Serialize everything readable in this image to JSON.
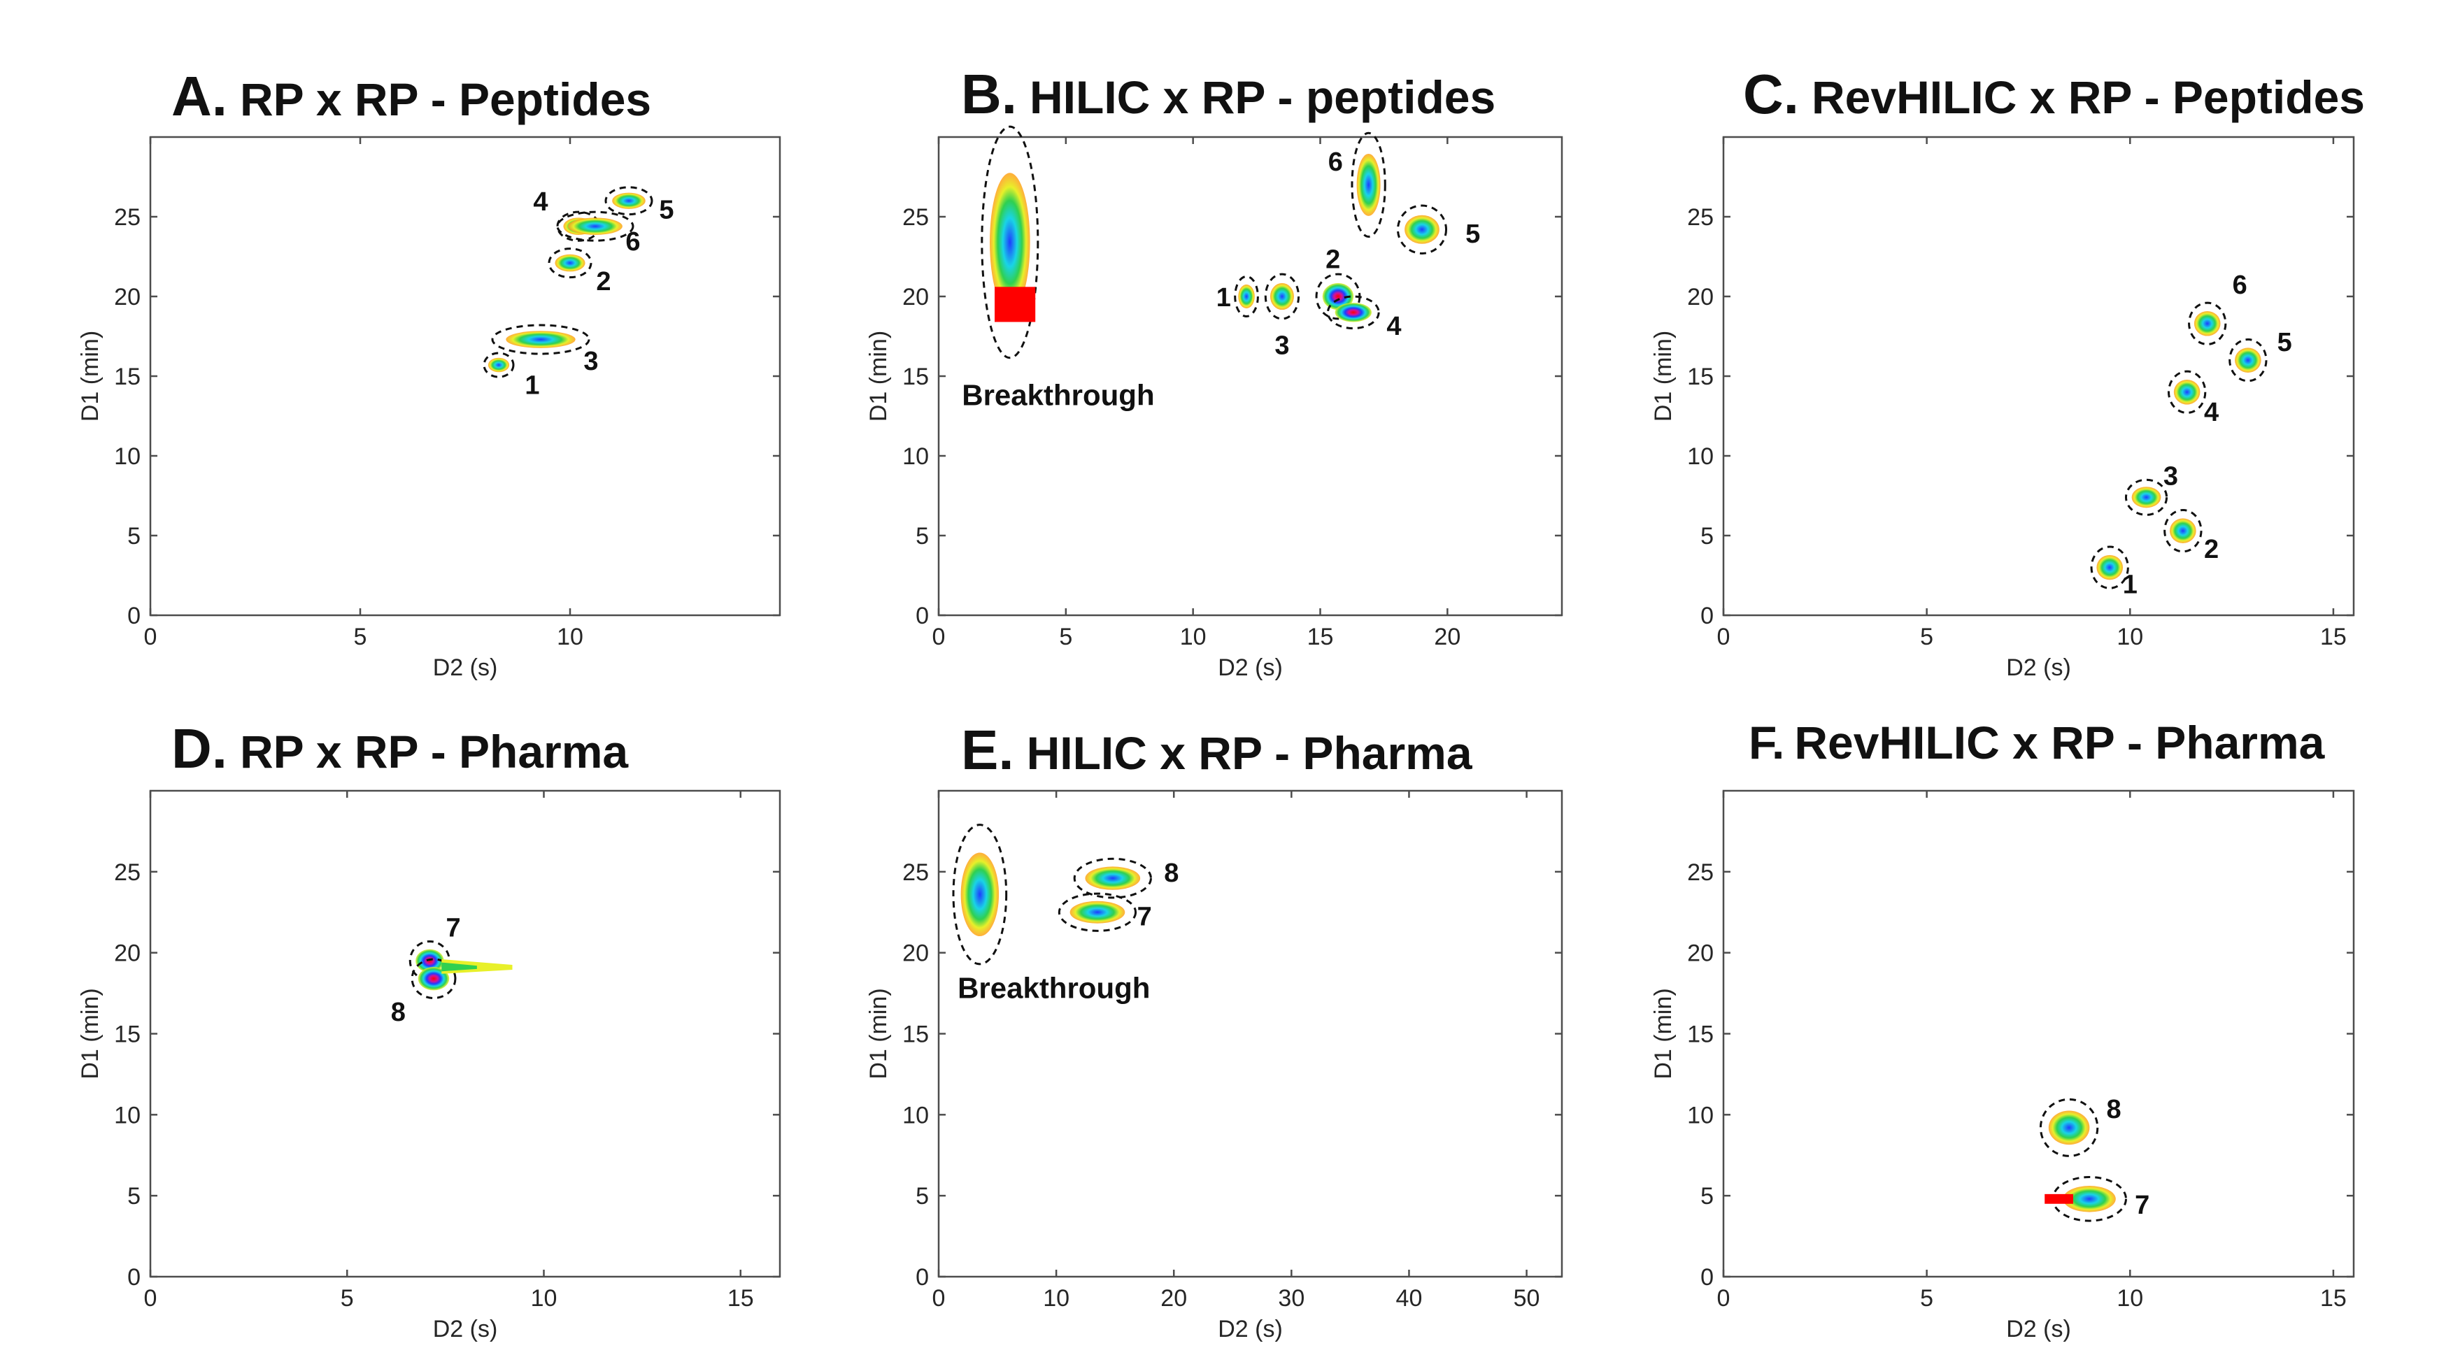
{
  "colors": {
    "red": "#ff0000",
    "magenta": "#d4119a",
    "blue": "#1f3cff",
    "cyan": "#19d4e6",
    "green": "#2fd050",
    "yellow": "#e8f02a",
    "orange": "#ffa01a"
  },
  "chart_data": [
    {
      "id": "A",
      "type": "scatter",
      "letter": "A.",
      "title": "RP x RP - Peptides",
      "xlabel": "D2 (s)",
      "ylabel": "D1 (min)",
      "xlim": [
        0,
        15
      ],
      "ylim": [
        0,
        30
      ],
      "xticks": [
        0,
        5,
        10
      ],
      "yticks": [
        0,
        5,
        10,
        15,
        20,
        25
      ],
      "peaks": [
        {
          "label": "1",
          "x": 8.3,
          "y": 15.7,
          "w": 0.7,
          "h": 1.5,
          "lx": 9.1,
          "ly": 14.5,
          "intensity": 2
        },
        {
          "label": "2",
          "x": 10.0,
          "y": 22.1,
          "w": 1.0,
          "h": 1.8,
          "lx": 10.8,
          "ly": 21.0,
          "intensity": 2
        },
        {
          "label": "3",
          "x": 9.3,
          "y": 17.3,
          "w": 2.3,
          "h": 1.8,
          "lx": 10.5,
          "ly": 16.0,
          "intensity": 2
        },
        {
          "label": "4",
          "x": 10.2,
          "y": 24.4,
          "w": 1.0,
          "h": 1.8,
          "lx": 9.3,
          "ly": 26.0,
          "intensity": 2
        },
        {
          "label": "5",
          "x": 11.4,
          "y": 26.0,
          "w": 1.1,
          "h": 1.7,
          "lx": 12.3,
          "ly": 25.5,
          "intensity": 2
        },
        {
          "label": "6",
          "x": 10.6,
          "y": 24.4,
          "w": 1.8,
          "h": 1.8,
          "lx": 11.5,
          "ly": 23.5,
          "intensity": 2
        }
      ],
      "annotations": []
    },
    {
      "id": "B",
      "type": "scatter",
      "letter": "B.",
      "title": "HILIC x RP - peptides",
      "xlabel": "D2 (s)",
      "ylabel": "D1 (min)",
      "xlim": [
        0,
        24.5
      ],
      "ylim": [
        0,
        30
      ],
      "xticks": [
        0,
        5,
        10,
        15,
        20
      ],
      "yticks": [
        0,
        5,
        10,
        15,
        20,
        25
      ],
      "peaks": [
        {
          "label": "",
          "x": 2.8,
          "y": 23.4,
          "w": 2.2,
          "h": 14.5,
          "lx": 0,
          "ly": 0,
          "intensity": 2
        },
        {
          "label": "1",
          "x": 12.1,
          "y": 20.0,
          "w": 0.9,
          "h": 2.5,
          "lx": 11.2,
          "ly": 20.0,
          "intensity": 2
        },
        {
          "label": "2",
          "x": 15.7,
          "y": 20.0,
          "w": 1.7,
          "h": 2.8,
          "lx": 15.5,
          "ly": 22.4,
          "intensity": 3
        },
        {
          "label": "3",
          "x": 13.5,
          "y": 20.0,
          "w": 1.3,
          "h": 2.8,
          "lx": 13.5,
          "ly": 17.0,
          "intensity": 2
        },
        {
          "label": "4",
          "x": 16.3,
          "y": 19.0,
          "w": 2.0,
          "h": 2.0,
          "lx": 17.9,
          "ly": 18.2,
          "intensity": 3
        },
        {
          "label": "5",
          "x": 19.0,
          "y": 24.2,
          "w": 1.9,
          "h": 3.0,
          "lx": 21.0,
          "ly": 24.0,
          "intensity": 2
        },
        {
          "label": "6",
          "x": 16.9,
          "y": 27.0,
          "w": 1.3,
          "h": 6.5,
          "lx": 15.6,
          "ly": 28.5,
          "intensity": 2
        }
      ],
      "annotations": [
        {
          "text": "Breakthrough",
          "x": 4.7,
          "y": 13.8
        }
      ]
    },
    {
      "id": "C",
      "type": "scatter",
      "letter": "C.",
      "title": "RevHILIC x RP - Peptides",
      "xlabel": "D2 (s)",
      "ylabel": "D1 (min)",
      "xlim": [
        0,
        15.5
      ],
      "ylim": [
        0,
        30
      ],
      "xticks": [
        0,
        5,
        10,
        15
      ],
      "yticks": [
        0,
        5,
        10,
        15,
        20,
        25
      ],
      "peaks": [
        {
          "label": "1",
          "x": 9.5,
          "y": 3.0,
          "w": 0.9,
          "h": 2.6,
          "lx": 10.0,
          "ly": 2.0,
          "intensity": 2
        },
        {
          "label": "2",
          "x": 11.3,
          "y": 5.3,
          "w": 0.9,
          "h": 2.6,
          "lx": 12.0,
          "ly": 4.2,
          "intensity": 2
        },
        {
          "label": "3",
          "x": 10.4,
          "y": 7.4,
          "w": 1.0,
          "h": 2.2,
          "lx": 11.0,
          "ly": 8.8,
          "intensity": 2
        },
        {
          "label": "4",
          "x": 11.4,
          "y": 14.0,
          "w": 0.9,
          "h": 2.6,
          "lx": 12.0,
          "ly": 12.8,
          "intensity": 2
        },
        {
          "label": "5",
          "x": 12.9,
          "y": 16.0,
          "w": 0.9,
          "h": 2.6,
          "lx": 13.8,
          "ly": 17.2,
          "intensity": 2
        },
        {
          "label": "6",
          "x": 11.9,
          "y": 18.3,
          "w": 0.9,
          "h": 2.6,
          "lx": 12.7,
          "ly": 20.8,
          "intensity": 2
        }
      ],
      "annotations": []
    },
    {
      "id": "D",
      "type": "scatter",
      "letter": "D.",
      "title": "RP x RP - Pharma",
      "xlabel": "D2 (s)",
      "ylabel": "D1 (min)",
      "xlim": [
        0,
        16
      ],
      "ylim": [
        0,
        30
      ],
      "xticks": [
        0,
        5,
        10,
        15
      ],
      "yticks": [
        0,
        5,
        10,
        15,
        20,
        25
      ],
      "peaks": [
        {
          "label": "7",
          "x": 7.1,
          "y": 19.5,
          "w": 1.0,
          "h": 2.4,
          "lx": 7.7,
          "ly": 21.6,
          "intensity": 3
        },
        {
          "label": "8",
          "x": 7.2,
          "y": 18.4,
          "w": 1.1,
          "h": 2.4,
          "lx": 6.3,
          "ly": 16.4,
          "intensity": 3
        }
      ],
      "annotations": []
    },
    {
      "id": "E",
      "type": "scatter",
      "letter": "E.",
      "title": "HILIC x RP - Pharma",
      "xlabel": "D2 (s)",
      "ylabel": "D1 (min)",
      "xlim": [
        0,
        53
      ],
      "ylim": [
        0,
        30
      ],
      "xticks": [
        0,
        10,
        20,
        30,
        40,
        50
      ],
      "yticks": [
        0,
        5,
        10,
        15,
        20,
        25
      ],
      "peaks": [
        {
          "label": "",
          "x": 3.5,
          "y": 23.6,
          "w": 4.5,
          "h": 8.6,
          "lx": 0,
          "ly": 0,
          "intensity": 2
        },
        {
          "label": "7",
          "x": 13.5,
          "y": 22.5,
          "w": 6.5,
          "h": 2.3,
          "lx": 17.5,
          "ly": 22.3,
          "intensity": 2
        },
        {
          "label": "8",
          "x": 14.8,
          "y": 24.6,
          "w": 6.5,
          "h": 2.4,
          "lx": 19.8,
          "ly": 25.0,
          "intensity": 2
        }
      ],
      "annotations": [
        {
          "text": "Breakthrough",
          "x": 9.8,
          "y": 17.8
        }
      ]
    },
    {
      "id": "F",
      "type": "scatter",
      "letter": "F.",
      "title": "RevHILIC x RP - Pharma",
      "xlabel": "D2 (s)",
      "ylabel": "D1 (min)",
      "xlim": [
        0,
        15.5
      ],
      "ylim": [
        0,
        30
      ],
      "xticks": [
        0,
        5,
        10,
        15
      ],
      "yticks": [
        0,
        5,
        10,
        15,
        20,
        25
      ],
      "peaks": [
        {
          "label": "8",
          "x": 8.5,
          "y": 9.2,
          "w": 1.4,
          "h": 3.5,
          "lx": 9.6,
          "ly": 10.4,
          "intensity": 2
        },
        {
          "label": "7",
          "x": 9.0,
          "y": 4.8,
          "w": 1.8,
          "h": 2.7,
          "lx": 10.3,
          "ly": 4.5,
          "intensity": 2
        }
      ],
      "annotations": []
    }
  ]
}
